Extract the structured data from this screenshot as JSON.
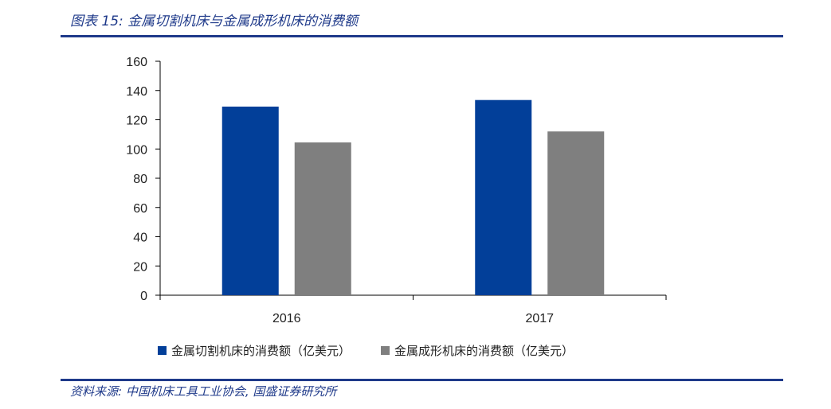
{
  "header": {
    "title": "图表 15:  金属切割机床与金属成形机床的消费额"
  },
  "footer": {
    "source": "资料来源:  中国机床工具工业协会,  国盛证券研究所"
  },
  "colors": {
    "accent": "#1f3a8a",
    "series1": "#023f99",
    "series2": "#7f7f7f"
  },
  "chart_data": {
    "type": "bar",
    "title": "",
    "categories": [
      "2016",
      "2017"
    ],
    "series": [
      {
        "name": "金属切割机床的消费额（亿美元）",
        "values": [
          129,
          133.5
        ]
      },
      {
        "name": "金属成形机床的消费额（亿美元）",
        "values": [
          104.5,
          112
        ]
      }
    ],
    "ylim": [
      0,
      160
    ],
    "yticks": [
      0,
      20,
      40,
      60,
      80,
      100,
      120,
      140,
      160
    ],
    "xlabel": "",
    "ylabel": "",
    "grid": false,
    "legend_position": "bottom"
  }
}
